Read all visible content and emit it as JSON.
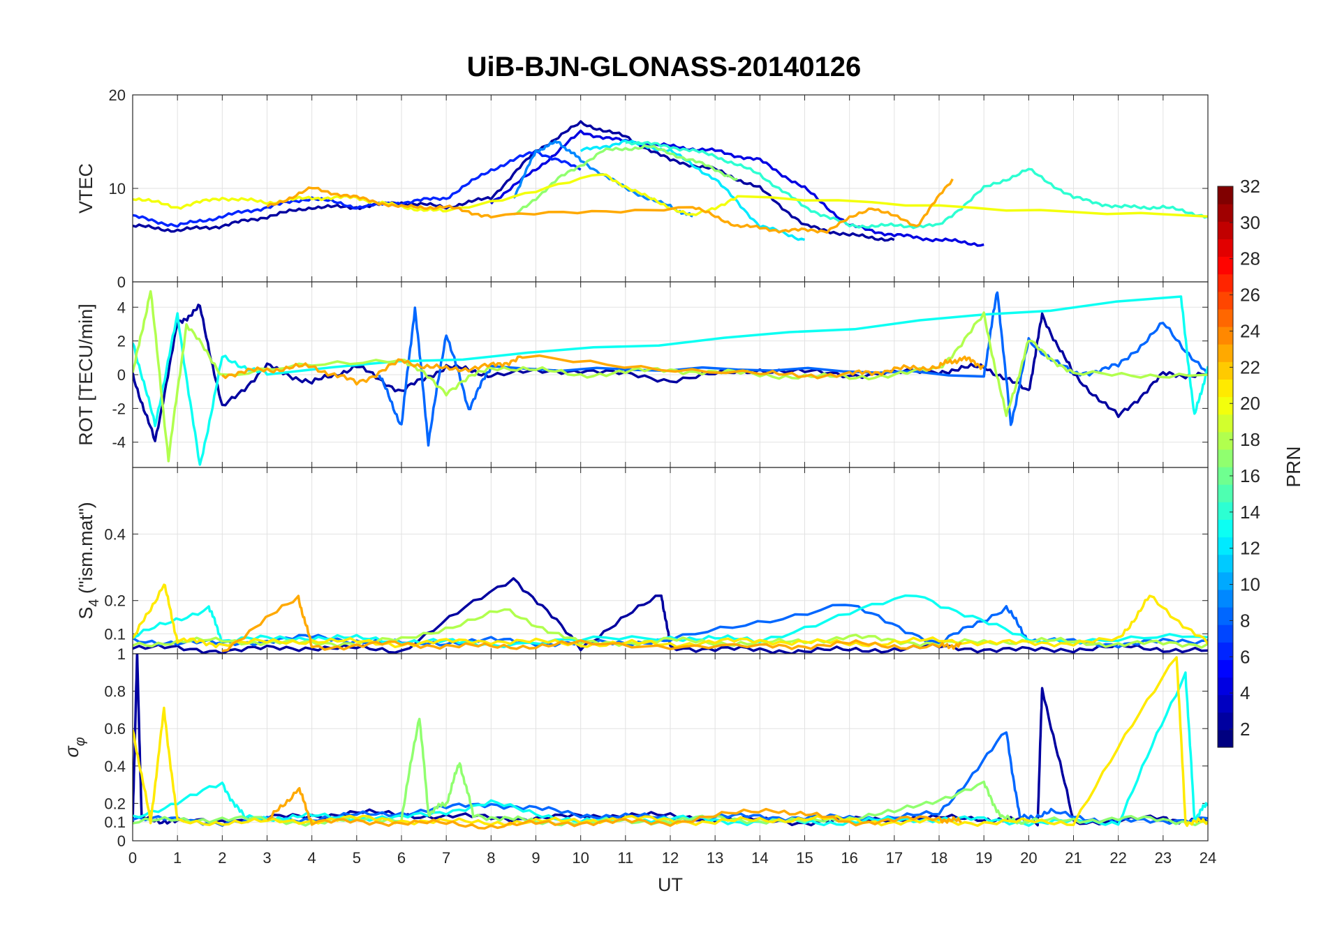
{
  "chart_data": {
    "type": "line",
    "title": "UiB-BJN-GLONASS-20140126",
    "xlabel": "UT",
    "xlim": [
      0,
      24
    ],
    "x_ticks": [
      "0",
      "1",
      "2",
      "3",
      "4",
      "5",
      "6",
      "7",
      "8",
      "9",
      "10",
      "11",
      "12",
      "13",
      "14",
      "15",
      "16",
      "17",
      "18",
      "19",
      "20",
      "21",
      "22",
      "23",
      "24"
    ],
    "panels": [
      {
        "ylabel": "VTEC",
        "ylim": [
          0,
          20
        ],
        "y_ticks": [
          "0",
          "10",
          "20"
        ],
        "series": [
          {
            "prn": 2,
            "x": [
              0,
              1,
              2,
              3,
              4,
              5,
              6,
              7,
              8,
              9,
              10,
              11,
              12,
              13,
              14,
              15,
              16,
              17
            ],
            "y": [
              6,
              5.5,
              6,
              7,
              8,
              8,
              8.5,
              8,
              9,
              14,
              17,
              15.5,
              13,
              12,
              10,
              6,
              5,
              4.5
            ]
          },
          {
            "prn": 4,
            "x": [
              8,
              9,
              10,
              11,
              12,
              13,
              14,
              15,
              16,
              17,
              18,
              19
            ],
            "y": [
              8.5,
              12,
              16,
              15,
              14.5,
              14,
              13,
              10,
              6,
              5,
              4.5,
              4
            ]
          },
          {
            "prn": 6,
            "x": [
              0,
              1,
              2,
              3,
              4,
              5,
              6,
              7,
              8,
              9,
              10
            ],
            "y": [
              7,
              6,
              7,
              8,
              9,
              8,
              8.5,
              9,
              12,
              14,
              12
            ]
          },
          {
            "prn": 9,
            "x": [
              8.5,
              9,
              9.5,
              10,
              11,
              12,
              12.5
            ],
            "y": [
              9,
              14,
              15,
              13,
              10,
              8,
              7
            ]
          },
          {
            "prn": 12,
            "x": [
              10,
              11,
              12,
              13,
              14,
              15
            ],
            "y": [
              14,
              15,
              14,
              11,
              6,
              4.5
            ]
          },
          {
            "prn": 14,
            "x": [
              11,
              12,
              13,
              14,
              15,
              16,
              17,
              18,
              19,
              20,
              21,
              22,
              23,
              24
            ],
            "y": [
              15,
              14.5,
              13.5,
              11.5,
              8,
              6,
              6,
              6,
              10,
              12,
              9,
              8,
              8,
              7
            ]
          },
          {
            "prn": 17,
            "x": [
              8.5,
              9.5,
              10.5,
              11.5,
              12.5,
              13.5
            ],
            "y": [
              7,
              11,
              14,
              14.5,
              13,
              11
            ]
          },
          {
            "prn": 20,
            "x": [
              0,
              1,
              2,
              3,
              4,
              5,
              6,
              7,
              10.5,
              11.5,
              12.5,
              13.5,
              24
            ],
            "y": [
              9,
              8,
              9,
              8.5,
              9,
              9,
              8,
              7.5,
              11.5,
              9,
              7,
              9,
              7
            ]
          },
          {
            "prn": 23,
            "x": [
              3,
              4,
              5,
              6,
              7,
              8,
              12.5,
              13.5,
              14.5,
              15.5,
              16.5,
              17.5,
              18.3
            ],
            "y": [
              8,
              10,
              9,
              8,
              8,
              7,
              8,
              6,
              5.5,
              5.5,
              8,
              6,
              11
            ]
          }
        ]
      },
      {
        "ylabel": "ROT [TECU/min]",
        "ylim": [
          -5.5,
          5.5
        ],
        "y_ticks": [
          "-4",
          "-2",
          "0",
          "2",
          "4"
        ],
        "series": [
          {
            "prn": 2,
            "x": [
              0,
              0.5,
              1,
              1.5,
              2,
              3,
              4,
              5,
              6,
              7,
              8,
              10,
              12,
              14,
              16,
              18,
              19,
              20,
              20.3,
              21,
              22,
              23,
              24
            ],
            "y": [
              0,
              -4,
              3,
              4,
              -2,
              0.5,
              -0.5,
              0.5,
              -1,
              0.5,
              0,
              0.3,
              -0.3,
              0.3,
              0,
              0.2,
              0.5,
              -1,
              3.5,
              0,
              -2.5,
              0,
              0
            ]
          },
          {
            "prn": 8,
            "x": [
              5.5,
              6,
              6.3,
              6.6,
              7,
              7.5,
              8,
              19,
              19.3,
              19.6,
              20,
              21,
              22,
              23,
              24
            ],
            "y": [
              0,
              -3,
              4,
              -4,
              2.5,
              -2,
              0.5,
              0,
              5,
              -3,
              2,
              0,
              0.5,
              3,
              0
            ]
          },
          {
            "prn": 13,
            "x": [
              0,
              0.5,
              1,
              1.5,
              2,
              3,
              23.4,
              23.7,
              24
            ],
            "y": [
              2,
              -3,
              3.5,
              -5.5,
              1,
              0,
              4.5,
              -2.5,
              0.5
            ]
          },
          {
            "prn": 18,
            "x": [
              0,
              0.4,
              0.8,
              1.2,
              2,
              6,
              7,
              8,
              10,
              12,
              14,
              16,
              18,
              19,
              19.5,
              20,
              21,
              24
            ],
            "y": [
              0,
              5,
              -5,
              3,
              0,
              1,
              -1,
              0.5,
              0,
              0.3,
              0,
              -0.2,
              0.3,
              3.5,
              -2.5,
              2,
              0,
              0
            ]
          },
          {
            "prn": 23,
            "x": [
              2,
              3,
              4,
              5,
              6,
              7,
              8,
              8.7,
              14,
              16,
              17,
              18,
              18.5,
              19
            ],
            "y": [
              0,
              0.3,
              0.5,
              -0.5,
              0.8,
              0.3,
              0.5,
              1,
              0,
              0,
              0.3,
              0.5,
              1,
              0.5
            ]
          }
        ]
      },
      {
        "ylabel": "S4 (\"ism.mat\")",
        "ylabel_main": "S",
        "ylabel_sub": "4",
        "ylabel_rest": " (\"ism.mat\")",
        "ylim": [
          0.04,
          0.6
        ],
        "y_ticks": [
          "0.1",
          "0.2",
          "0.4"
        ],
        "series": [
          {
            "prn": 2,
            "x": [
              0,
              2,
              4,
              6,
              8.5,
              10,
              11.8,
              12,
              14,
              16,
              18,
              20,
              22,
              24
            ],
            "y": [
              0.06,
              0.05,
              0.06,
              0.05,
              0.27,
              0.06,
              0.22,
              0.06,
              0.05,
              0.05,
              0.06,
              0.05,
              0.06,
              0.05
            ]
          },
          {
            "prn": 8,
            "x": [
              0,
              2,
              4,
              6,
              8,
              10,
              12,
              15.9,
              18,
              19.5,
              20,
              22,
              24
            ],
            "y": [
              0.08,
              0.07,
              0.09,
              0.07,
              0.08,
              0.07,
              0.08,
              0.19,
              0.07,
              0.18,
              0.08,
              0.07,
              0.08
            ]
          },
          {
            "prn": 13,
            "x": [
              0,
              1.7,
              2,
              4,
              6,
              8,
              12,
              14,
              17.5,
              20,
              24
            ],
            "y": [
              0.09,
              0.18,
              0.08,
              0.09,
              0.08,
              0.07,
              0.09,
              0.08,
              0.22,
              0.08,
              0.09
            ]
          },
          {
            "prn": 18,
            "x": [
              0,
              2,
              4,
              6,
              8.3,
              10,
              12,
              14,
              16,
              18,
              20,
              22,
              24
            ],
            "y": [
              0.07,
              0.08,
              0.07,
              0.08,
              0.17,
              0.07,
              0.08,
              0.07,
              0.09,
              0.07,
              0.08,
              0.07,
              0.07
            ]
          },
          {
            "prn": 21,
            "x": [
              0,
              0.7,
              1,
              2,
              4,
              6,
              8,
              10,
              12,
              14,
              16,
              18,
              20,
              22,
              22.7,
              24
            ],
            "y": [
              0.08,
              0.25,
              0.08,
              0.07,
              0.08,
              0.07,
              0.08,
              0.07,
              0.07,
              0.08,
              0.07,
              0.08,
              0.07,
              0.08,
              0.21,
              0.07
            ]
          },
          {
            "prn": 23,
            "x": [
              2,
              3.7,
              4,
              6,
              8,
              10,
              14,
              16,
              18,
              18.5
            ],
            "y": [
              0.05,
              0.21,
              0.06,
              0.07,
              0.06,
              0.07,
              0.06,
              0.07,
              0.06,
              0.07
            ]
          }
        ]
      },
      {
        "ylabel": "σφ",
        "ylabel_main": "σ",
        "ylabel_sub": "φ",
        "ylim": [
          0,
          1
        ],
        "y_ticks": [
          "0",
          "0.1",
          "0.2",
          "0.4",
          "0.6",
          "0.8",
          "1"
        ],
        "series": [
          {
            "prn": 2,
            "x": [
              0,
              0.1,
              0.2,
              1,
              3,
              5,
              7,
              9,
              11,
              13,
              15,
              17,
              19,
              20.2,
              20.3,
              21,
              23,
              24
            ],
            "y": [
              0.1,
              1,
              0.12,
              0.1,
              0.12,
              0.15,
              0.13,
              0.12,
              0.14,
              0.12,
              0.1,
              0.12,
              0.12,
              0.1,
              0.82,
              0.1,
              0.12,
              0.1
            ]
          },
          {
            "prn": 8,
            "x": [
              0,
              2,
              4,
              6,
              8,
              10,
              12,
              14,
              16,
              18,
              19.5,
              19.8,
              20.5,
              22,
              24
            ],
            "y": [
              0.12,
              0.1,
              0.12,
              0.15,
              0.2,
              0.14,
              0.12,
              0.13,
              0.12,
              0.14,
              0.58,
              0.12,
              0.15,
              0.1,
              0.12
            ]
          },
          {
            "prn": 13,
            "x": [
              0,
              2,
              2.5,
              4,
              6,
              8,
              10,
              12,
              14,
              16,
              18,
              20,
              22,
              23.5,
              23.7,
              24
            ],
            "y": [
              0.12,
              0.3,
              0.12,
              0.13,
              0.12,
              0.2,
              0.1,
              0.12,
              0.1,
              0.1,
              0.12,
              0.1,
              0.1,
              0.9,
              0.12,
              0.2
            ]
          },
          {
            "prn": 17,
            "x": [
              0,
              2,
              4,
              6,
              6.4,
              6.6,
              7,
              7.3,
              7.6,
              9,
              11,
              13,
              15,
              17,
              19,
              19.4,
              20,
              22,
              24
            ],
            "y": [
              0.1,
              0.12,
              0.1,
              0.12,
              0.67,
              0.15,
              0.2,
              0.42,
              0.14,
              0.1,
              0.1,
              0.12,
              0.1,
              0.15,
              0.3,
              0.12,
              0.1,
              0.12,
              0.1
            ]
          },
          {
            "prn": 21,
            "x": [
              0,
              0.4,
              0.7,
              1,
              3,
              5,
              7,
              9,
              11,
              13,
              15,
              17,
              19,
              21,
              23.3,
              23.5,
              24
            ],
            "y": [
              0.6,
              0.1,
              0.7,
              0.1,
              0.1,
              0.12,
              0.1,
              0.1,
              0.12,
              0.1,
              0.12,
              0.1,
              0.1,
              0.1,
              1,
              0.1,
              0.1
            ]
          },
          {
            "prn": 23,
            "x": [
              3,
              3.7,
              4,
              6,
              8,
              10,
              12,
              14.3,
              16,
              18,
              18.5
            ],
            "y": [
              0.1,
              0.28,
              0.1,
              0.1,
              0.08,
              0.1,
              0.1,
              0.17,
              0.1,
              0.12,
              0.1
            ]
          }
        ]
      }
    ],
    "colorbar": {
      "label": "PRN",
      "range": [
        1,
        32
      ],
      "ticks": [
        "2",
        "4",
        "6",
        "8",
        "10",
        "12",
        "14",
        "16",
        "18",
        "20",
        "22",
        "24",
        "26",
        "28",
        "30",
        "32"
      ],
      "colormap": "jet",
      "levels": 32
    },
    "grid": true
  }
}
